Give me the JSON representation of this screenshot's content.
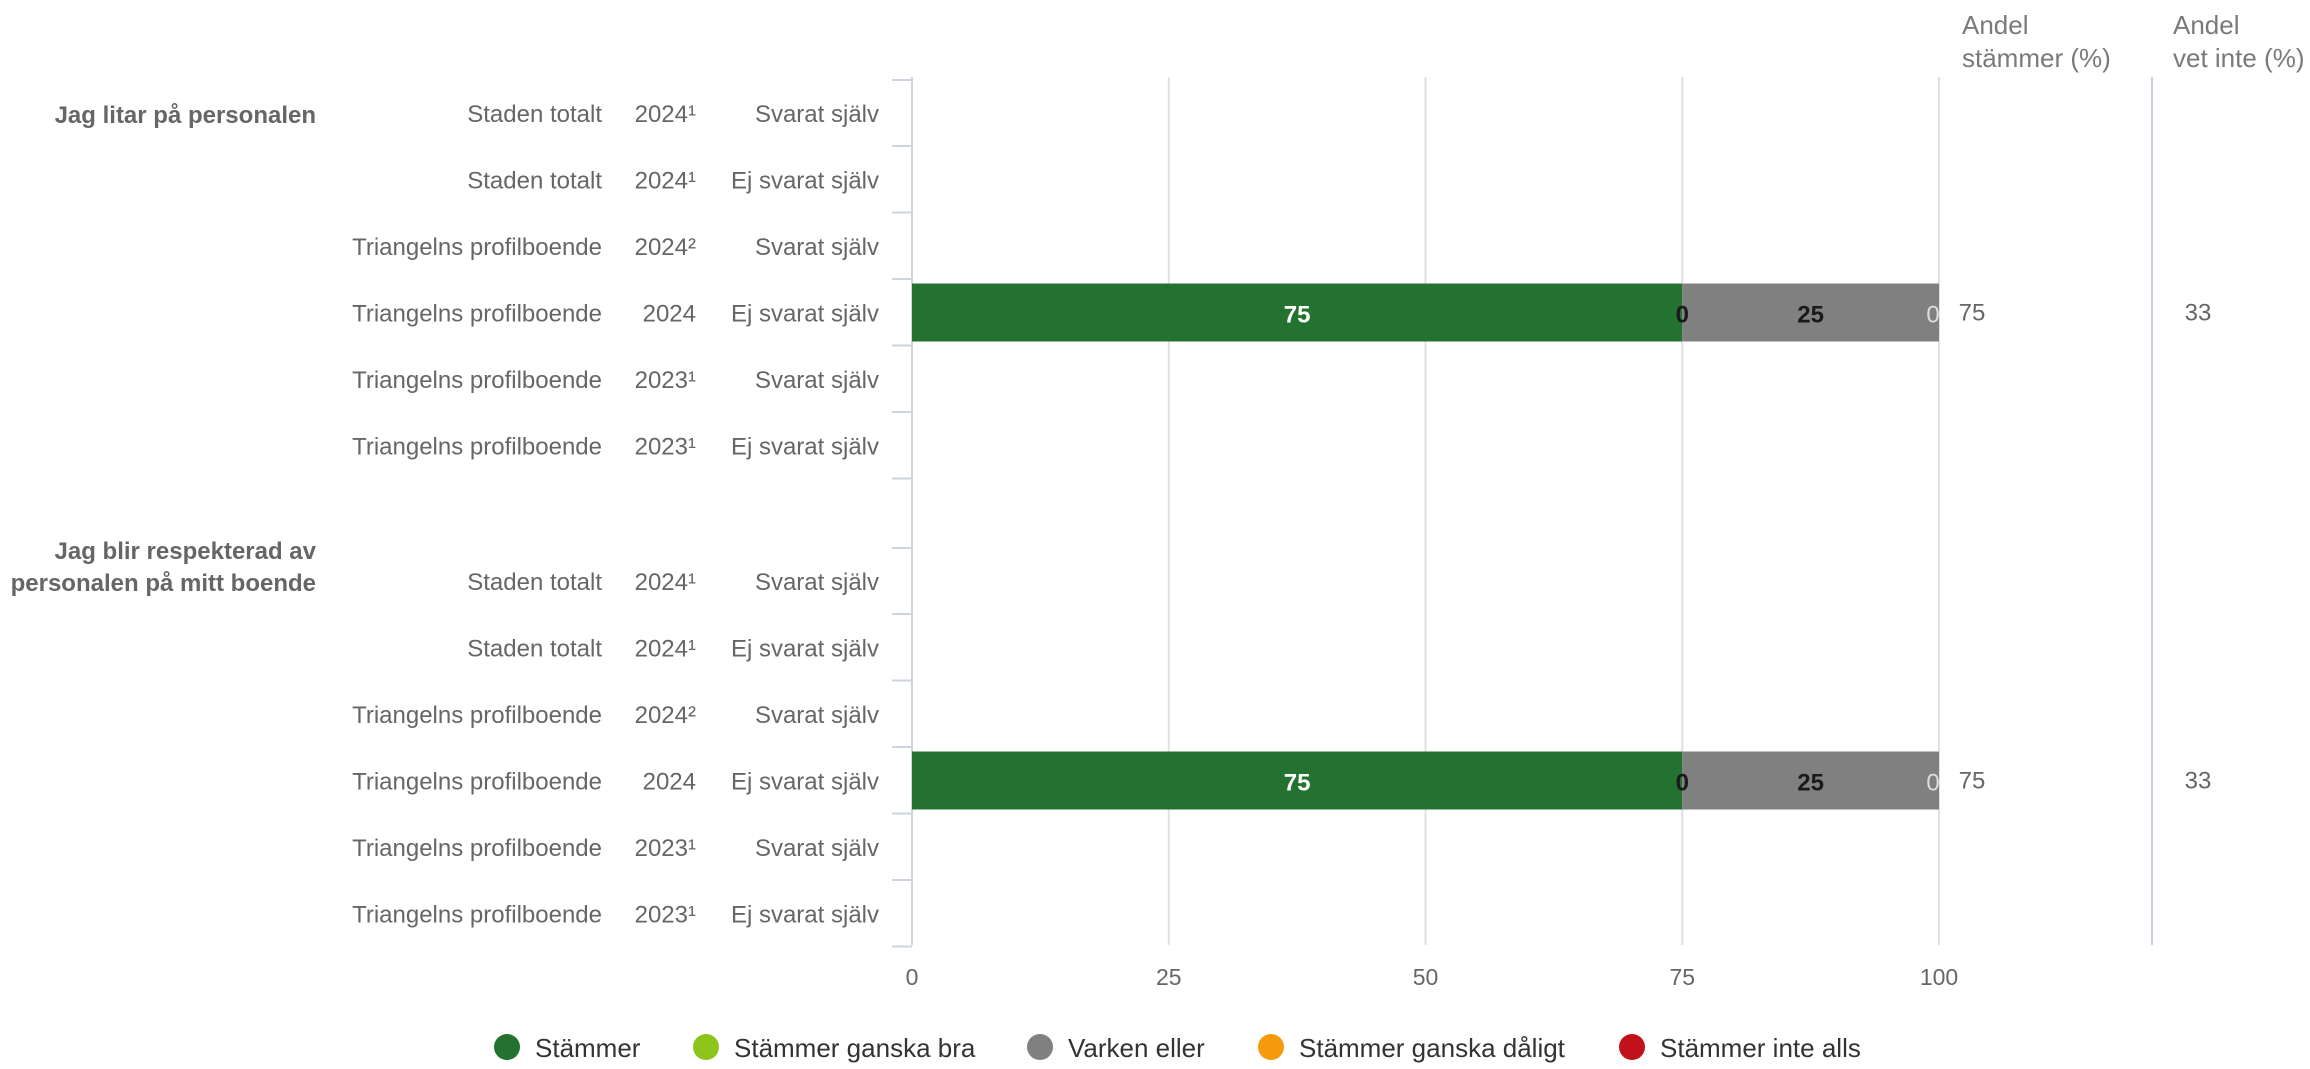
{
  "chart_data": {
    "type": "bar",
    "stacked": true,
    "orientation": "horizontal",
    "xlim": [
      0,
      100
    ],
    "xticks": [
      0,
      25,
      50,
      75,
      100
    ],
    "grid": true,
    "legend_position": "bottom",
    "categories_legend": [
      {
        "name": "Stämmer",
        "color": "#247230"
      },
      {
        "name": "Stämmer ganska bra",
        "color": "#8dc41a"
      },
      {
        "name": "Varken eller",
        "color": "#808080"
      },
      {
        "name": "Stämmer ganska dåligt",
        "color": "#f59a0c"
      },
      {
        "name": "Stämmer inte alls",
        "color": "#c1121b"
      }
    ],
    "extra_columns": [
      {
        "header": [
          "Andel",
          "stämmer (%)"
        ]
      },
      {
        "header": [
          "Andel",
          "vet inte (%)"
        ]
      }
    ],
    "groups": [
      {
        "question": [
          "Jag litar på personalen"
        ],
        "rows": [
          {
            "unit": "Staden totalt",
            "year": "2024¹",
            "respondent": "Svarat själv",
            "values": null,
            "share_agree": "",
            "share_dontknow": ""
          },
          {
            "unit": "Staden totalt",
            "year": "2024¹",
            "respondent": "Ej svarat själv",
            "values": null,
            "share_agree": "",
            "share_dontknow": ""
          },
          {
            "unit": "Triangelns profilboende",
            "year": "2024²",
            "respondent": "Svarat själv",
            "values": null,
            "share_agree": "",
            "share_dontknow": ""
          },
          {
            "unit": "Triangelns profilboende",
            "year": "2024",
            "respondent": "Ej svarat själv",
            "values": [
              75,
              0,
              25,
              0,
              0
            ],
            "share_agree": "75",
            "share_dontknow": "33"
          },
          {
            "unit": "Triangelns profilboende",
            "year": "2023¹",
            "respondent": "Svarat själv",
            "values": null,
            "share_agree": "",
            "share_dontknow": ""
          },
          {
            "unit": "Triangelns profilboende",
            "year": "2023¹",
            "respondent": "Ej svarat själv",
            "values": null,
            "share_agree": "",
            "share_dontknow": ""
          }
        ]
      },
      {
        "question": [
          "Jag blir respekterad av",
          "personalen på mitt boende"
        ],
        "rows": [
          {
            "unit": "Staden totalt",
            "year": "2024¹",
            "respondent": "Svarat själv",
            "values": null,
            "share_agree": "",
            "share_dontknow": ""
          },
          {
            "unit": "Staden totalt",
            "year": "2024¹",
            "respondent": "Ej svarat själv",
            "values": null,
            "share_agree": "",
            "share_dontknow": ""
          },
          {
            "unit": "Triangelns profilboende",
            "year": "2024²",
            "respondent": "Svarat själv",
            "values": null,
            "share_agree": "",
            "share_dontknow": ""
          },
          {
            "unit": "Triangelns profilboende",
            "year": "2024",
            "respondent": "Ej svarat själv",
            "values": [
              75,
              0,
              25,
              0,
              0
            ],
            "share_agree": "75",
            "share_dontknow": "33"
          },
          {
            "unit": "Triangelns profilboende",
            "year": "2023¹",
            "respondent": "Svarat själv",
            "values": null,
            "share_agree": "",
            "share_dontknow": ""
          },
          {
            "unit": "Triangelns profilboende",
            "year": "2023¹",
            "respondent": "Ej svarat själv",
            "values": null,
            "share_agree": "",
            "share_dontknow": ""
          }
        ]
      }
    ]
  }
}
